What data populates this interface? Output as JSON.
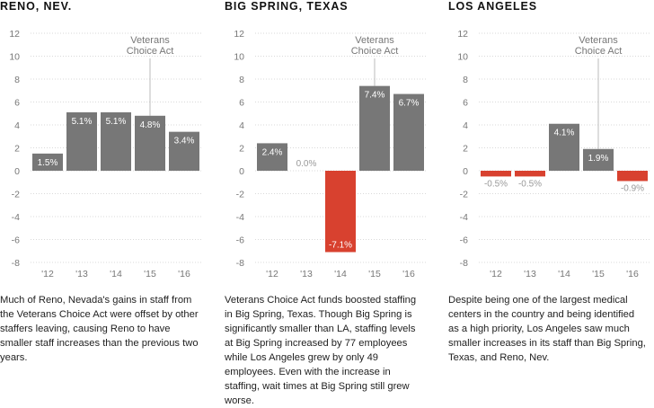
{
  "chart_data": [
    {
      "type": "bar",
      "title": "RENO, NEV.",
      "categories": [
        "'12",
        "'13",
        "'14",
        "'15",
        "'16"
      ],
      "values": [
        1.5,
        5.1,
        5.1,
        4.8,
        3.4
      ],
      "value_labels": [
        "1.5%",
        "5.1%",
        "5.1%",
        "4.8%",
        "3.4%"
      ],
      "ylim": [
        -8,
        12
      ],
      "yticks": [
        12,
        10,
        8,
        6,
        4,
        2,
        0,
        -2,
        -4,
        -6,
        -8
      ],
      "grid": true,
      "annotation": {
        "text_lines": [
          "Veterans",
          "Choice Act"
        ],
        "category": "'15"
      },
      "caption": "Much of Reno, Nevada's gains in staff from the Veterans Choice Act were offset by other staffers leaving, causing Reno to have smaller staff increases than the previous two years."
    },
    {
      "type": "bar",
      "title": "BIG SPRING, TEXAS",
      "categories": [
        "'12",
        "'13",
        "'14",
        "'15",
        "'16"
      ],
      "values": [
        2.4,
        0.0,
        -7.1,
        7.4,
        6.7
      ],
      "value_labels": [
        "2.4%",
        "0.0%",
        "-7.1%",
        "7.4%",
        "6.7%"
      ],
      "ylim": [
        -8,
        12
      ],
      "yticks": [
        12,
        10,
        8,
        6,
        4,
        2,
        0,
        -2,
        -4,
        -6,
        -8
      ],
      "grid": true,
      "annotation": {
        "text_lines": [
          "Veterans",
          "Choice Act"
        ],
        "category": "'15"
      },
      "caption": "Veterans Choice Act funds boosted staffing in Big Spring, Texas. Though Big Spring is significantly smaller than LA, staffing levels at Big Spring increased by 77 employees while Los Angeles grew by only 49 employees. Even with the increase in staffing, wait times at Big Spring still grew worse."
    },
    {
      "type": "bar",
      "title": "LOS ANGELES",
      "categories": [
        "'12",
        "'13",
        "'14",
        "'15",
        "'16"
      ],
      "values": [
        -0.5,
        -0.5,
        4.1,
        1.9,
        -0.9
      ],
      "value_labels": [
        "-0.5%",
        "-0.5%",
        "4.1%",
        "1.9%",
        "-0.9%"
      ],
      "ylim": [
        -8,
        12
      ],
      "yticks": [
        12,
        10,
        8,
        6,
        4,
        2,
        0,
        -2,
        -4,
        -6,
        -8
      ],
      "grid": true,
      "annotation": {
        "text_lines": [
          "Veterans",
          "Choice Act"
        ],
        "category": "'15"
      },
      "caption": "Despite being one of the largest medical centers in the country and being identified as a high priority, Los Angeles saw much smaller increases in its staff than Big Spring, Texas, and Reno, Nev."
    }
  ],
  "colors": {
    "positive_bar": "#777777",
    "negative_bar": "#d8412f",
    "grid": "#d9d9d9",
    "axis_text": "#777777",
    "label_inside": "#ffffff",
    "label_outside": "#999999"
  }
}
